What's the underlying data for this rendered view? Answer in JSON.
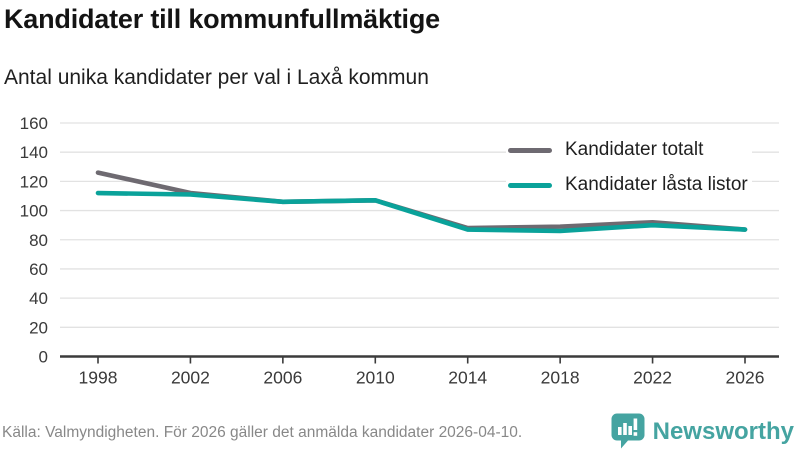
{
  "header": {
    "title": "Kandidater till kommunfullmäktige",
    "subtitle": "Antal unika kandidater per val i Laxå kommun"
  },
  "chart_data": {
    "type": "line",
    "title": "Kandidater till kommunfullmäktige",
    "subtitle": "Antal unika kandidater per val i Laxå kommun",
    "categories": [
      "1998",
      "2002",
      "2006",
      "2010",
      "2014",
      "2018",
      "2022",
      "2026"
    ],
    "series": [
      {
        "name": "Kandidater totalt",
        "color": "#6e6a71",
        "values": [
          126,
          112,
          106,
          107,
          88,
          89,
          92,
          87
        ]
      },
      {
        "name": "Kandidater låsta listor",
        "color": "#0aa29a",
        "values": [
          112,
          111,
          106,
          107,
          87,
          86,
          90,
          87
        ]
      }
    ],
    "xlabel": "",
    "ylabel": "",
    "ylim": [
      0,
      160
    ],
    "yticks": [
      0,
      20,
      40,
      60,
      80,
      100,
      120,
      140,
      160
    ],
    "grid": "horizontal",
    "legend_position": "top-right",
    "grid_color": "#e2e2e2",
    "axis_color": "#3b3b3b",
    "tick_label_color": "#3a3a3a"
  },
  "footer": {
    "source": "Källa: Valmyndigheten. För 2026 gäller det anmälda kandidater 2026-04-10.",
    "brand": "Newsworthy",
    "brand_color": "#45a4a1"
  }
}
